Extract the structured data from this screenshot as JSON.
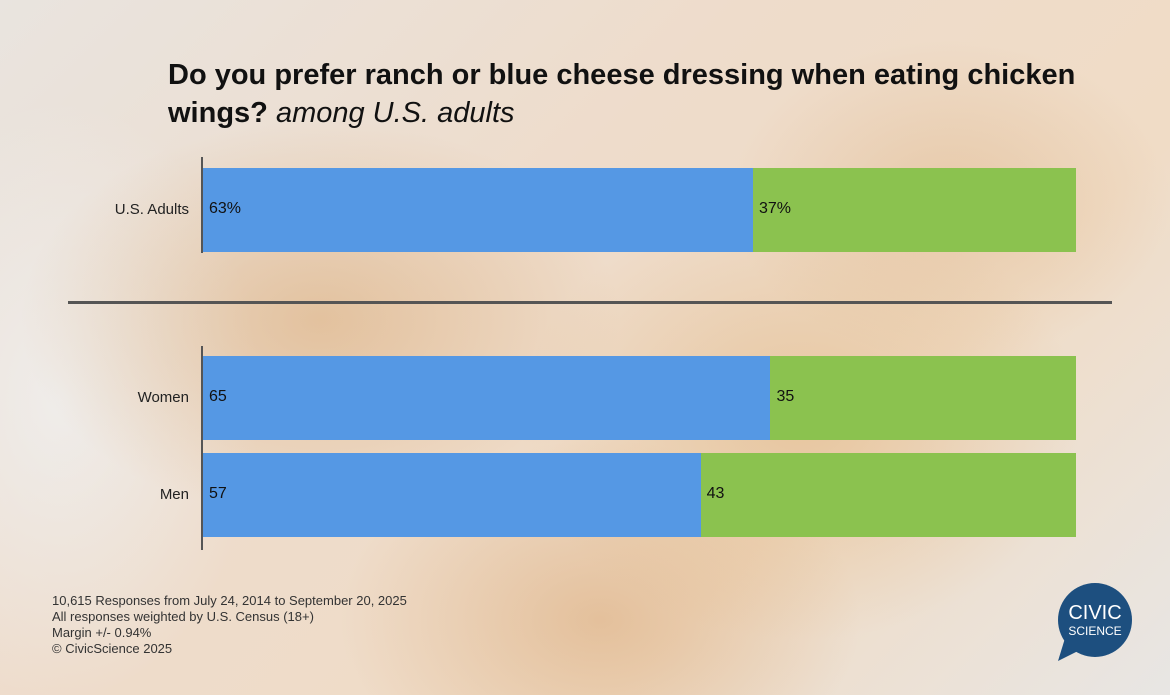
{
  "chart_data": {
    "type": "bar",
    "stacked": true,
    "orientation": "horizontal",
    "title": "Do you prefer ranch or blue cheese dressing when eating chicken wings?",
    "subtitle": "among U.S. adults",
    "xlim": [
      0,
      100
    ],
    "grid": false,
    "groups": [
      {
        "categories": [
          "U.S. Adults"
        ],
        "labels": [
          [
            "63%",
            "37%"
          ]
        ]
      },
      {
        "categories": [
          "Women",
          "Men"
        ],
        "labels": [
          [
            "65",
            "35"
          ],
          [
            "57",
            "43"
          ]
        ]
      }
    ],
    "categories": [
      "U.S. Adults",
      "Women",
      "Men"
    ],
    "series": [
      {
        "values": [
          63,
          65,
          57
        ],
        "color": "#5598e4"
      },
      {
        "values": [
          37,
          35,
          43
        ],
        "color": "#8bc24f"
      }
    ]
  },
  "footer": [
    "10,615 Responses from July 24, 2014 to September 20, 2025",
    "All responses weighted by U.S. Census (18+)",
    "Margin +/- 0.94%",
    "© CivicScience 2025"
  ],
  "logo": {
    "line1": "CIVIC",
    "line2": "SCIENCE",
    "color": "#1d4f7f"
  }
}
